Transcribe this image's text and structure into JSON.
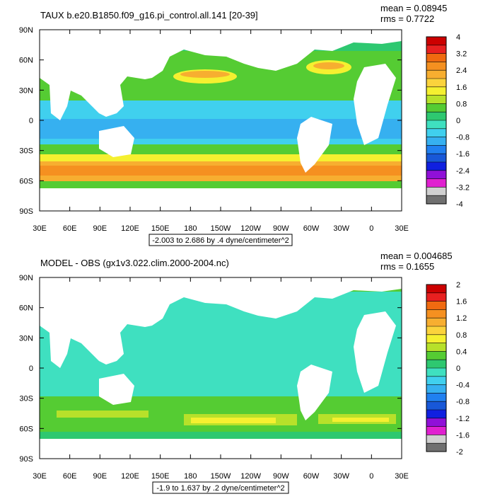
{
  "chart_data": [
    {
      "type": "heatmap",
      "title": "TAUX b.e20.B1850.f09_g16.pi_control.all.141 [20-39]",
      "stats": {
        "mean": "mean = 0.08945",
        "rms": "rms = 0.7722"
      },
      "range_label": "-2.003 to 2.686 by .4 dyne/centimeter^2",
      "x_ticks": [
        "30E",
        "60E",
        "90E",
        "120E",
        "150E",
        "180",
        "150W",
        "120W",
        "90W",
        "60W",
        "30W",
        "0",
        "30E"
      ],
      "y_ticks": [
        "90N",
        "60N",
        "30N",
        "0",
        "30S",
        "60S",
        "90S"
      ],
      "colorbar": {
        "labels": [
          "4",
          "3.2",
          "2.4",
          "1.6",
          "0.8",
          "0",
          "-0.8",
          "-1.6",
          "-2.4",
          "-3.2",
          "-4"
        ],
        "colors": [
          "#cc0000",
          "#e82020",
          "#f06a10",
          "#f59020",
          "#f7ae30",
          "#fbd33c",
          "#f5f030",
          "#b7e12a",
          "#55cc33",
          "#2ec870",
          "#3fe0c0",
          "#40d0ee",
          "#36b0f0",
          "#2080f0",
          "#1858d8",
          "#1020e0",
          "#9010d8",
          "#e020d0",
          "#d0d0d0",
          "#707070"
        ]
      }
    },
    {
      "type": "heatmap",
      "title": "MODEL - OBS (gx1v3.022.clim.2000-2004.nc)",
      "stats": {
        "mean": "mean = 0.004685",
        "rms": "rms = 0.1655"
      },
      "range_label": "-1.9 to 1.637 by .2 dyne/centimeter^2",
      "x_ticks": [
        "30E",
        "60E",
        "90E",
        "120E",
        "150E",
        "180",
        "150W",
        "120W",
        "90W",
        "60W",
        "30W",
        "0",
        "30E"
      ],
      "y_ticks": [
        "90N",
        "60N",
        "30N",
        "0",
        "30S",
        "60S",
        "90S"
      ],
      "colorbar": {
        "labels": [
          "2",
          "1.6",
          "1.2",
          "0.8",
          "0.4",
          "0",
          "-0.4",
          "-0.8",
          "-1.2",
          "-1.6",
          "-2"
        ],
        "colors": [
          "#cc0000",
          "#e82020",
          "#f06a10",
          "#f59020",
          "#f7ae30",
          "#fbd33c",
          "#f5f030",
          "#b7e12a",
          "#55cc33",
          "#2ec870",
          "#3fe0c0",
          "#40d0ee",
          "#36b0f0",
          "#2080f0",
          "#1858d8",
          "#1020e0",
          "#9010d8",
          "#e020d0",
          "#d0d0d0",
          "#707070"
        ]
      }
    }
  ]
}
